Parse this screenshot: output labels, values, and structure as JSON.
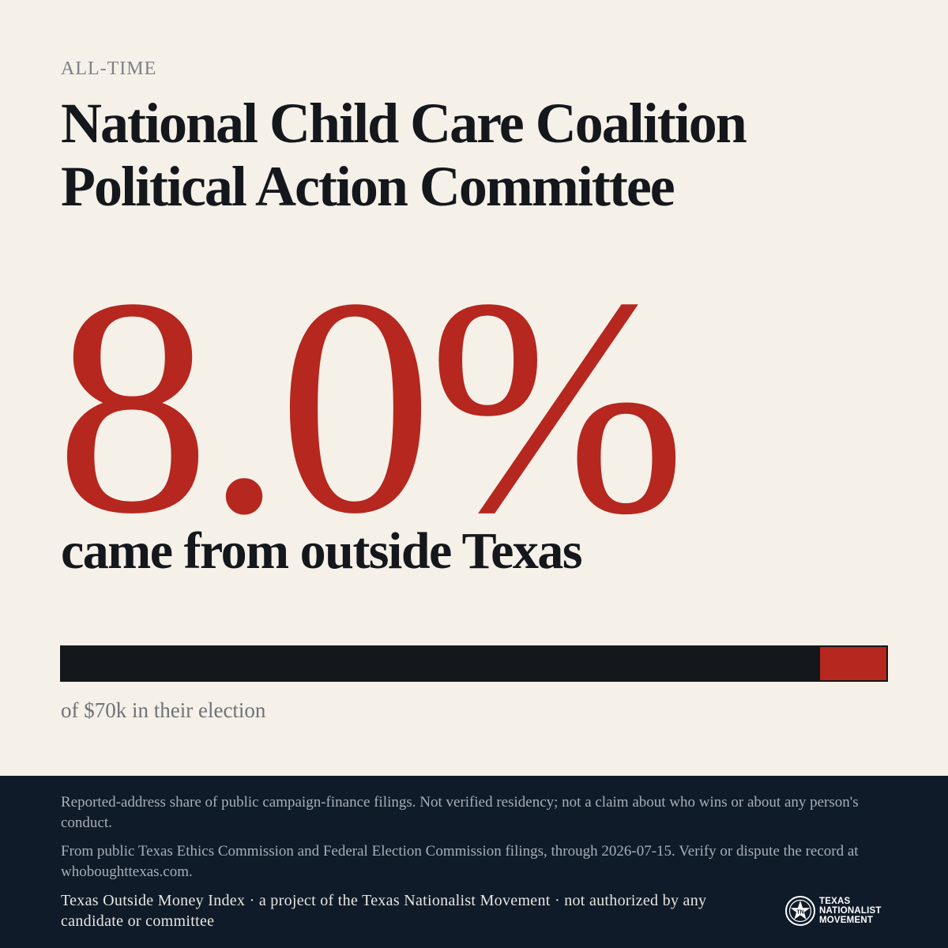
{
  "header": {
    "eyebrow": "ALL-TIME",
    "title_line1": "National Child Care Coalition",
    "title_line2": "Political Action Committee"
  },
  "headline": {
    "percent": "8.0%",
    "caption": "came from outside Texas"
  },
  "share_bar": {
    "outside_fraction": 0.08,
    "caption": "of $70k in their election",
    "inside_color": "#14171c",
    "outside_color": "#b5271f"
  },
  "footer": {
    "disclaimer": "Reported-address share of public campaign-finance filings. Not verified residency; not a claim about who wins or about any person's conduct.",
    "source": "From public Texas Ethics Commission and Federal Election Commission filings, through 2026-07-15. Verify or dispute the record at whoboughttexas.com.",
    "credit": "Texas Outside Money Index · a project of the Texas Nationalist Movement · not authorized by any candidate or committee",
    "logo": {
      "icon": "lone-star-seal-icon",
      "line1": "TEXAS",
      "line2": "NATIONALIST",
      "line3": "MOVEMENT"
    }
  },
  "colors": {
    "background": "#f5f0e8",
    "accent": "#b5271f",
    "ink": "#14171c",
    "footer_bg": "#0f1b29"
  }
}
